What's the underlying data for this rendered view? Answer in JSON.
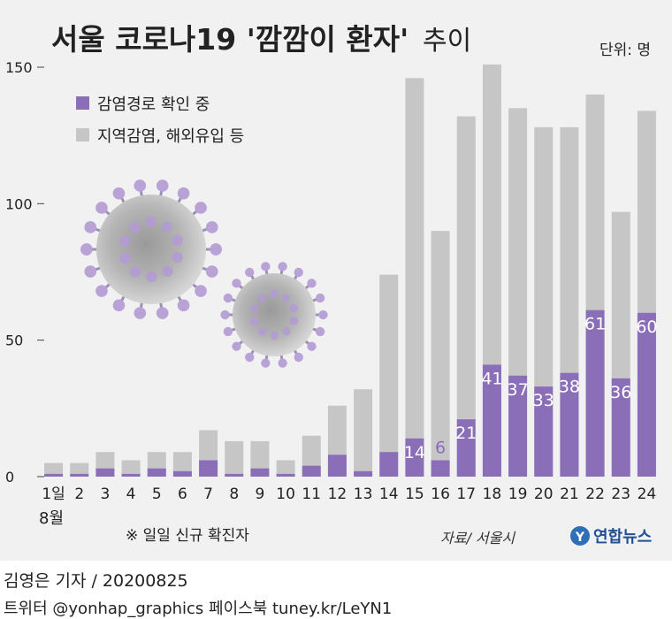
{
  "colors": {
    "background": "#f1f1f1",
    "confirmed_bar": "#8a6eb8",
    "total_bar": "#c6c6c6",
    "inner_label": "#ffffff",
    "outer_label": "#8a6eb8",
    "axis_text": "#222222"
  },
  "header": {
    "title_main": "서울 코로나19 '깜깜이 환자'",
    "title_suffix": "추이",
    "unit": "단위: 명"
  },
  "footer": {
    "note": "※ 일일 신규 확진자",
    "source": "자료/ 서울시",
    "logo_text": "연합뉴스",
    "logo_mark": "Y"
  },
  "credits": {
    "reporter": "김영은 기자 / 20200825",
    "social": "트위터 @yonhap_graphics  페이스북 tuney.kr/LeYN1"
  },
  "chart_data": {
    "type": "bar",
    "stacked": true,
    "x_unit_label": "8월",
    "categories": [
      "1일",
      "2",
      "3",
      "4",
      "5",
      "6",
      "7",
      "8",
      "9",
      "10",
      "11",
      "12",
      "13",
      "14",
      "15",
      "16",
      "17",
      "18",
      "19",
      "20",
      "21",
      "22",
      "23",
      "24"
    ],
    "series": [
      {
        "name": "감염경로 확인 중",
        "values": [
          1,
          1,
          3,
          1,
          3,
          2,
          6,
          1,
          3,
          1,
          4,
          8,
          2,
          9,
          14,
          6,
          21,
          41,
          37,
          33,
          38,
          61,
          36,
          60
        ]
      },
      {
        "name": "지역감염, 해외유입 등",
        "values": [
          4,
          4,
          6,
          5,
          6,
          7,
          11,
          12,
          10,
          5,
          11,
          18,
          30,
          65,
          132,
          84,
          111,
          110,
          98,
          95,
          90,
          79,
          61,
          74
        ]
      }
    ],
    "data_labels": [
      "",
      "",
      "",
      "",
      "",
      "",
      "",
      "",
      "",
      "",
      "",
      "",
      "",
      "",
      "14",
      "6",
      "21",
      "41",
      "37",
      "33",
      "38",
      "61",
      "36",
      "60"
    ],
    "y_ticks": [
      "150",
      "100",
      "50",
      "0"
    ],
    "ylim": [
      0,
      150
    ],
    "legend_position": "top-left"
  }
}
